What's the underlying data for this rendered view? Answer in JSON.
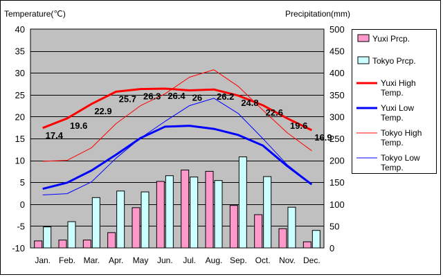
{
  "chart_data": {
    "type": "bar",
    "categories": [
      "Jan.",
      "Feb.",
      "Mar.",
      "Apr.",
      "May",
      "Jun.",
      "Jul.",
      "Aug.",
      "Sep.",
      "Oct.",
      "Nov.",
      "Dec."
    ],
    "left_axis": {
      "label": "Temperature(℃)",
      "min": -10,
      "max": 40,
      "ticks": [
        -10,
        -5,
        0,
        5,
        10,
        15,
        20,
        25,
        30,
        35,
        40
      ]
    },
    "right_axis": {
      "label": "Precipitation(mm)",
      "min": 0,
      "max": 500,
      "ticks": [
        0,
        50,
        100,
        150,
        200,
        250,
        300,
        350,
        400,
        450,
        500
      ]
    },
    "bar_series": [
      {
        "name": "Yuxi Prcp.",
        "color": "#ff99cc",
        "values": [
          16,
          18,
          18,
          35,
          92,
          152,
          178,
          175,
          97,
          76,
          44,
          14
        ]
      },
      {
        "name": "Tokyo Prcp.",
        "color": "#ccffff",
        "values": [
          48,
          60,
          115,
          130,
          128,
          165,
          162,
          154,
          208,
          163,
          93,
          40
        ]
      }
    ],
    "line_series": [
      {
        "name": "Yuxi High Temp.",
        "color": "#ff0000",
        "width": 3,
        "values": [
          17.4,
          19.6,
          22.9,
          25.7,
          26.3,
          26.4,
          26.0,
          26.2,
          24.8,
          22.6,
          19.6,
          16.9
        ]
      },
      {
        "name": "Yuxi Low Temp.",
        "color": "#0000ff",
        "width": 3,
        "values": [
          3.5,
          4.9,
          7.7,
          11.3,
          15.1,
          17.7,
          17.9,
          17.2,
          15.8,
          13.4,
          8.7,
          4.5
        ]
      },
      {
        "name": "Tokyo High Temp.",
        "color": "#ff0000",
        "width": 1,
        "values": [
          9.8,
          10.0,
          12.9,
          18.4,
          22.5,
          25.2,
          29.0,
          30.7,
          26.9,
          21.5,
          16.3,
          12.2
        ]
      },
      {
        "name": "Tokyo Low Temp.",
        "color": "#0000ff",
        "width": 1,
        "values": [
          2.1,
          2.4,
          5.1,
          10.5,
          15.1,
          18.9,
          22.5,
          24.2,
          20.7,
          15.0,
          9.0,
          4.6
        ]
      }
    ],
    "data_labels": {
      "series": "Yuxi High Temp.",
      "labels": [
        "17.4",
        "19.6",
        "22.9",
        "25.7",
        "26.3",
        "26.4",
        "26",
        "26.2",
        "24.8",
        "22.6",
        "19.6",
        "16.9"
      ]
    },
    "legend": [
      {
        "label_lines": [
          "Yuxi Prcp."
        ],
        "kind": "bar",
        "color": "#ff99cc"
      },
      {
        "label_lines": [
          "Tokyo Prcp."
        ],
        "kind": "bar",
        "color": "#ccffff"
      },
      {
        "label_lines": [
          "Yuxi High",
          "Temp."
        ],
        "kind": "line",
        "color": "#ff0000",
        "width": 3
      },
      {
        "label_lines": [
          "Yuxi Low",
          "Temp."
        ],
        "kind": "line",
        "color": "#0000ff",
        "width": 3
      },
      {
        "label_lines": [
          "Tokyo High",
          "Temp."
        ],
        "kind": "line",
        "color": "#ff0000",
        "width": 1
      },
      {
        "label_lines": [
          "Tokyo Low",
          "Temp."
        ],
        "kind": "line",
        "color": "#0000ff",
        "width": 1
      }
    ],
    "legend_position": "right",
    "plot_background": "#c0c0c0",
    "grid": true
  }
}
